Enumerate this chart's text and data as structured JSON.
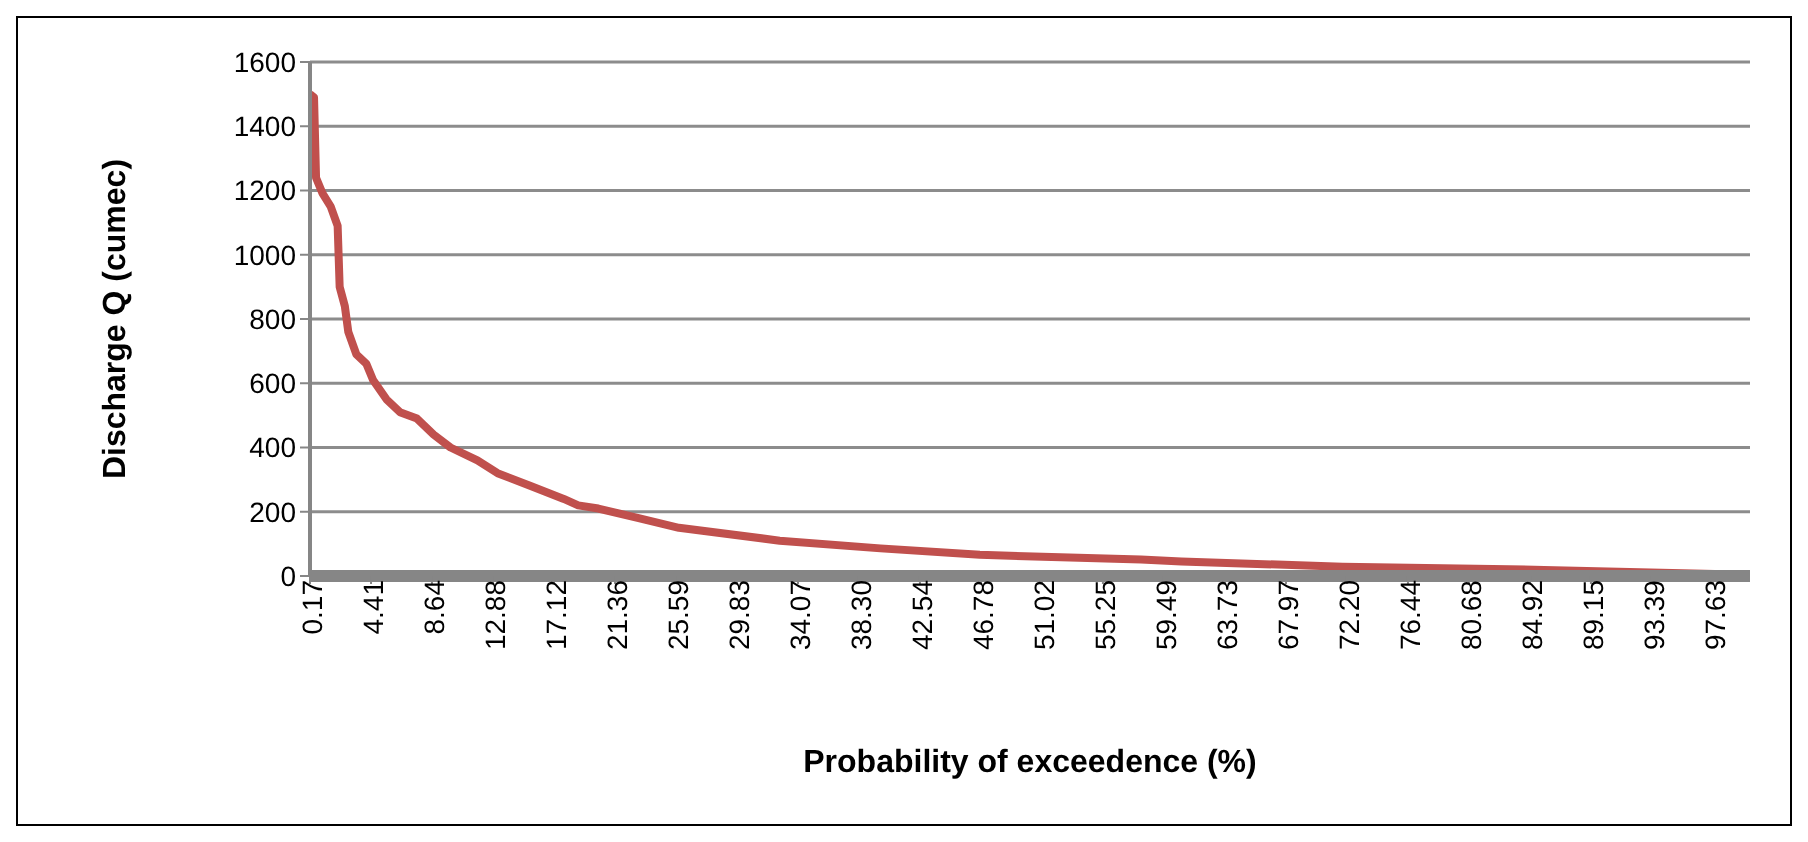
{
  "chart_data": {
    "type": "line",
    "xlabel": "Probability of exceedence (%)",
    "ylabel": "Discharge Q (cumec)",
    "x": [
      0.17,
      0.45,
      0.59,
      1.05,
      1.61,
      2.09,
      2.23,
      2.59,
      2.83,
      3.39,
      4.09,
      4.55,
      5.48,
      6.42,
      7.6,
      8.76,
      9.93,
      11.8,
      13.2,
      15.5,
      17.8,
      18.8,
      20.2,
      23,
      25.8,
      32.8,
      39.8,
      46.7,
      57.9,
      60.7,
      71.9,
      85.9,
      100
    ],
    "series": [
      {
        "color": "#c0504d",
        "values": [
          1500,
          1490,
          1240,
          1190,
          1150,
          1090,
          900,
          840,
          760,
          690,
          660,
          610,
          550,
          510,
          490,
          440,
          400,
          360,
          320,
          280,
          240,
          220,
          210,
          180,
          150,
          110,
          86,
          66,
          51,
          45,
          29,
          19,
          4
        ]
      }
    ],
    "xlim": [
      0.17,
      100.2
    ],
    "xticks": [
      0.17,
      4.41,
      8.64,
      12.88,
      17.12,
      21.36,
      25.59,
      29.83,
      34.07,
      {
        "value": 38.3,
        "label": "38.30"
      },
      42.54,
      46.78,
      51.02,
      55.25,
      59.49,
      63.73,
      67.97,
      {
        "value": 72.2,
        "label": "72.20"
      },
      76.44,
      80.68,
      84.92,
      89.15,
      93.39,
      97.63
    ],
    "ylim": [
      0,
      1600
    ],
    "yticks": [
      0,
      200,
      400,
      600,
      800,
      1000,
      1200,
      1400,
      1600
    ],
    "grid": "y",
    "legend": false,
    "marker": "none",
    "line_style": "solid"
  }
}
